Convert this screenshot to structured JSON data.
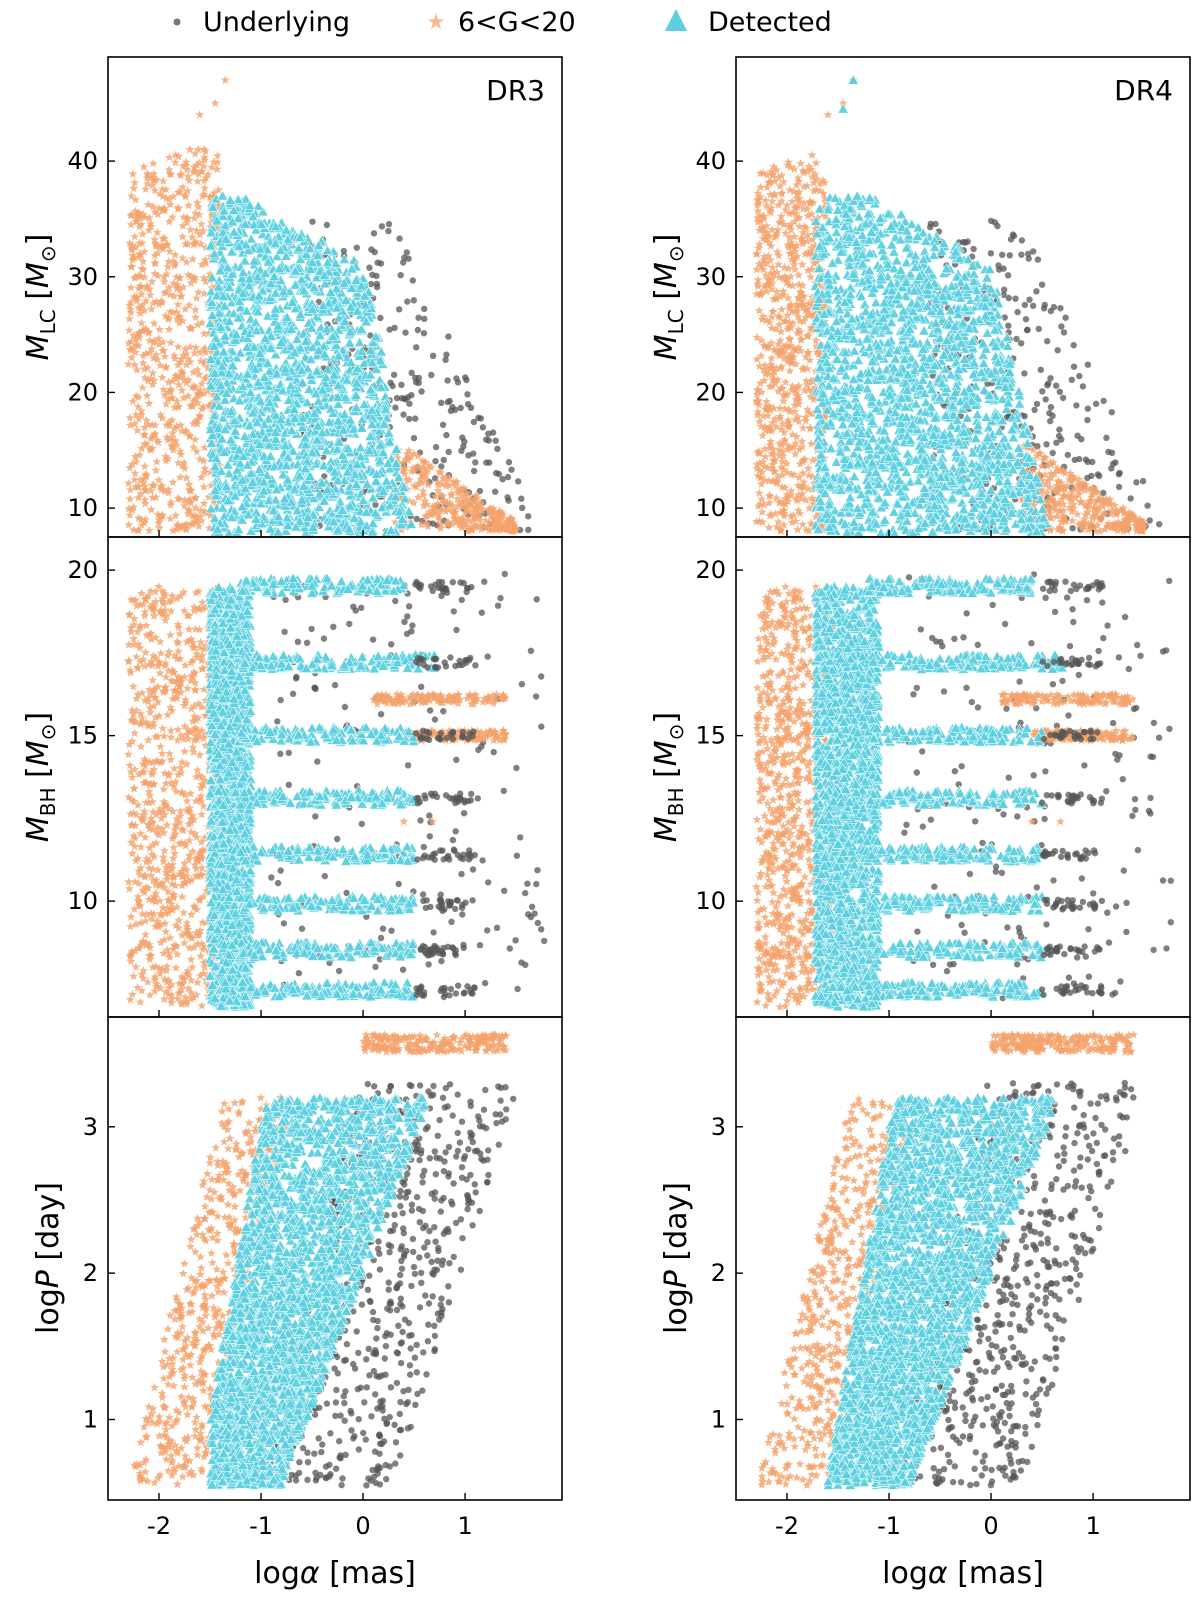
{
  "legend": [
    {
      "label": "Underlying",
      "marker": "dot",
      "color": "#555555"
    },
    {
      "label": "6<G<20",
      "marker": "star",
      "color": "#f4a36b"
    },
    {
      "label": "Detected",
      "marker": "triangle",
      "color": "#5ccfe0"
    }
  ],
  "chart_data": {
    "type": "scatter",
    "columns": [
      {
        "title": "DR3"
      },
      {
        "title": "DR4"
      }
    ],
    "rows": [
      {
        "ylabel_base": "M",
        "ylabel_sub": "LC",
        "ylabel_unit": "M",
        "ylabel_unit_sub": "⊙",
        "ylim": [
          7.5,
          49
        ],
        "yticks": [
          10,
          20,
          30,
          40
        ],
        "ytick_labels": [
          "10",
          "20",
          "30",
          "40"
        ]
      },
      {
        "ylabel_base": "M",
        "ylabel_sub": "BH",
        "ylabel_unit": "M",
        "ylabel_unit_sub": "⊙",
        "ylim": [
          6.5,
          21
        ],
        "yticks": [
          10,
          15,
          20
        ],
        "ytick_labels": [
          "10",
          "15",
          "20"
        ]
      },
      {
        "ylabel_base": "log",
        "ylabel_var": "P",
        "ylabel_unit_text": "[day]",
        "ylim": [
          0.45,
          3.75
        ],
        "yticks": [
          1,
          2,
          3
        ],
        "ytick_labels": [
          "1",
          "2",
          "3"
        ]
      }
    ],
    "xlim": [
      -2.5,
      1.95
    ],
    "xticks": [
      -2,
      -1,
      0,
      1
    ],
    "xtick_labels": [
      "-2",
      "-1",
      "0",
      "1"
    ],
    "xlabel_text": "log",
    "xlabel_var": "α",
    "xlabel_unit": "[mas]",
    "annotated_points": {
      "mlc_top_stars": [
        [
          -1.6,
          44
        ],
        [
          -1.45,
          45
        ],
        [
          -1.35,
          47
        ]
      ],
      "dr4_mlc_top_detected": [
        [
          -1.35,
          47
        ],
        [
          -1.45,
          44.5
        ]
      ],
      "mbh_isolated_stars": [
        [
          0.4,
          12.4
        ],
        [
          0.68,
          12.4
        ]
      ]
    }
  }
}
